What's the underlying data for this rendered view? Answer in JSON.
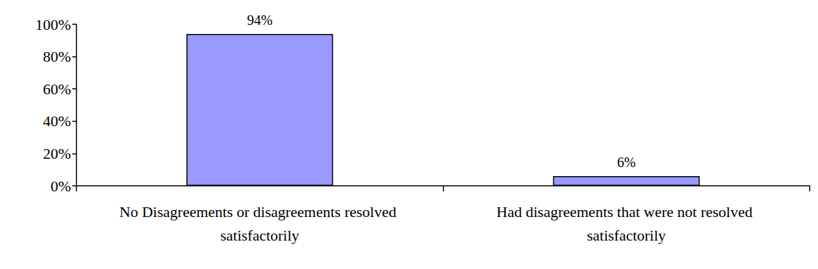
{
  "chart_data": {
    "type": "bar",
    "categories": [
      "No Disagreements or disagreements resolved satisfactorily",
      "Had disagreements that were not resolved satisfactorily"
    ],
    "values": [
      94,
      6
    ],
    "value_labels": [
      "94%",
      "6%"
    ],
    "data_labels": true,
    "color": "#9999ff",
    "ylim": [
      0,
      100
    ],
    "yticks": [
      {
        "value": 0,
        "label": "0%"
      },
      {
        "value": 20,
        "label": "20%"
      },
      {
        "value": 40,
        "label": "40%"
      },
      {
        "value": 60,
        "label": "60%"
      },
      {
        "value": 80,
        "label": "80%"
      },
      {
        "value": 100,
        "label": "100%"
      }
    ],
    "grid": false
  }
}
